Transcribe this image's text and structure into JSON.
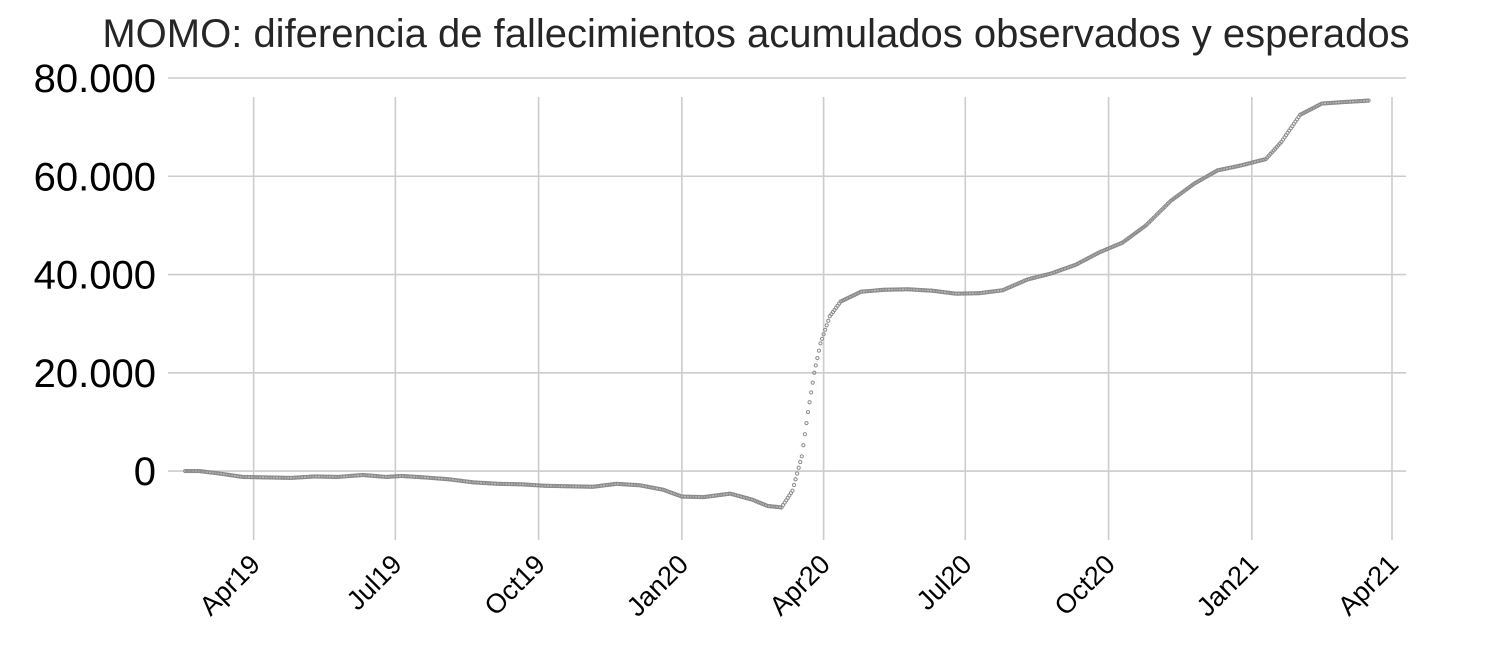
{
  "chart_data": {
    "type": "scatter",
    "title": "MOMO: diferencia de fallecimientos acumulados observados y esperados",
    "xlabel": "",
    "ylabel": "",
    "x_range": [
      "2019-02-05",
      "2021-04-10"
    ],
    "ylim": [
      -12000,
      80000
    ],
    "grid": true,
    "legend": "none",
    "marker_color": "#8c8c8c",
    "grid_color": "#cccccc",
    "y_ticks": [
      {
        "value": 0,
        "label": "0"
      },
      {
        "value": 20000,
        "label": "20.000"
      },
      {
        "value": 40000,
        "label": "40.000"
      },
      {
        "value": 60000,
        "label": "60.000"
      },
      {
        "value": 80000,
        "label": "80.000"
      }
    ],
    "x_ticks": [
      {
        "value": "2019-04-01",
        "label": "Apr19"
      },
      {
        "value": "2019-07-01",
        "label": "Jul19"
      },
      {
        "value": "2019-10-01",
        "label": "Oct19"
      },
      {
        "value": "2020-01-01",
        "label": "Jan20"
      },
      {
        "value": "2020-04-01",
        "label": "Apr20"
      },
      {
        "value": "2020-07-01",
        "label": "Jul20"
      },
      {
        "value": "2020-10-01",
        "label": "Oct20"
      },
      {
        "value": "2021-01-01",
        "label": "Jan21"
      },
      {
        "value": "2021-04-01",
        "label": "Apr21"
      }
    ],
    "series": [
      {
        "points": [
          [
            "2019-02-16",
            0
          ],
          [
            "2019-02-25",
            0
          ],
          [
            "2019-03-10",
            -500
          ],
          [
            "2019-03-25",
            -1200
          ],
          [
            "2019-04-10",
            -1300
          ],
          [
            "2019-04-25",
            -1400
          ],
          [
            "2019-05-10",
            -1100
          ],
          [
            "2019-05-25",
            -1200
          ],
          [
            "2019-06-10",
            -800
          ],
          [
            "2019-06-25",
            -1200
          ],
          [
            "2019-07-05",
            -1000
          ],
          [
            "2019-07-20",
            -1300
          ],
          [
            "2019-08-05",
            -1700
          ],
          [
            "2019-08-20",
            -2300
          ],
          [
            "2019-09-05",
            -2600
          ],
          [
            "2019-09-20",
            -2700
          ],
          [
            "2019-10-05",
            -3000
          ],
          [
            "2019-10-20",
            -3100
          ],
          [
            "2019-11-05",
            -3200
          ],
          [
            "2019-11-20",
            -2600
          ],
          [
            "2019-12-05",
            -2900
          ],
          [
            "2019-12-20",
            -3800
          ],
          [
            "2020-01-01",
            -5200
          ],
          [
            "2020-01-15",
            -5300
          ],
          [
            "2020-02-01",
            -4600
          ],
          [
            "2020-02-15",
            -5800
          ],
          [
            "2020-02-25",
            -7100
          ],
          [
            "2020-03-05",
            -7400
          ],
          [
            "2020-03-12",
            -4000
          ],
          [
            "2020-03-18",
            3000
          ],
          [
            "2020-03-22",
            12000
          ],
          [
            "2020-03-26",
            20000
          ],
          [
            "2020-03-30",
            26000
          ],
          [
            "2020-04-05",
            31500
          ],
          [
            "2020-04-12",
            34500
          ],
          [
            "2020-04-25",
            36500
          ],
          [
            "2020-05-10",
            36900
          ],
          [
            "2020-05-25",
            37000
          ],
          [
            "2020-06-10",
            36700
          ],
          [
            "2020-06-25",
            36100
          ],
          [
            "2020-07-10",
            36200
          ],
          [
            "2020-07-25",
            36800
          ],
          [
            "2020-08-10",
            39000
          ],
          [
            "2020-08-25",
            40200
          ],
          [
            "2020-09-10",
            42000
          ],
          [
            "2020-09-25",
            44500
          ],
          [
            "2020-10-10",
            46500
          ],
          [
            "2020-10-25",
            50000
          ],
          [
            "2020-11-10",
            55000
          ],
          [
            "2020-11-25",
            58500
          ],
          [
            "2020-12-10",
            61200
          ],
          [
            "2020-12-25",
            62200
          ],
          [
            "2021-01-10",
            63500
          ],
          [
            "2021-01-20",
            67000
          ],
          [
            "2021-02-01",
            72500
          ],
          [
            "2021-02-15",
            74800
          ],
          [
            "2021-03-01",
            75100
          ],
          [
            "2021-03-17",
            75400
          ]
        ]
      }
    ]
  }
}
